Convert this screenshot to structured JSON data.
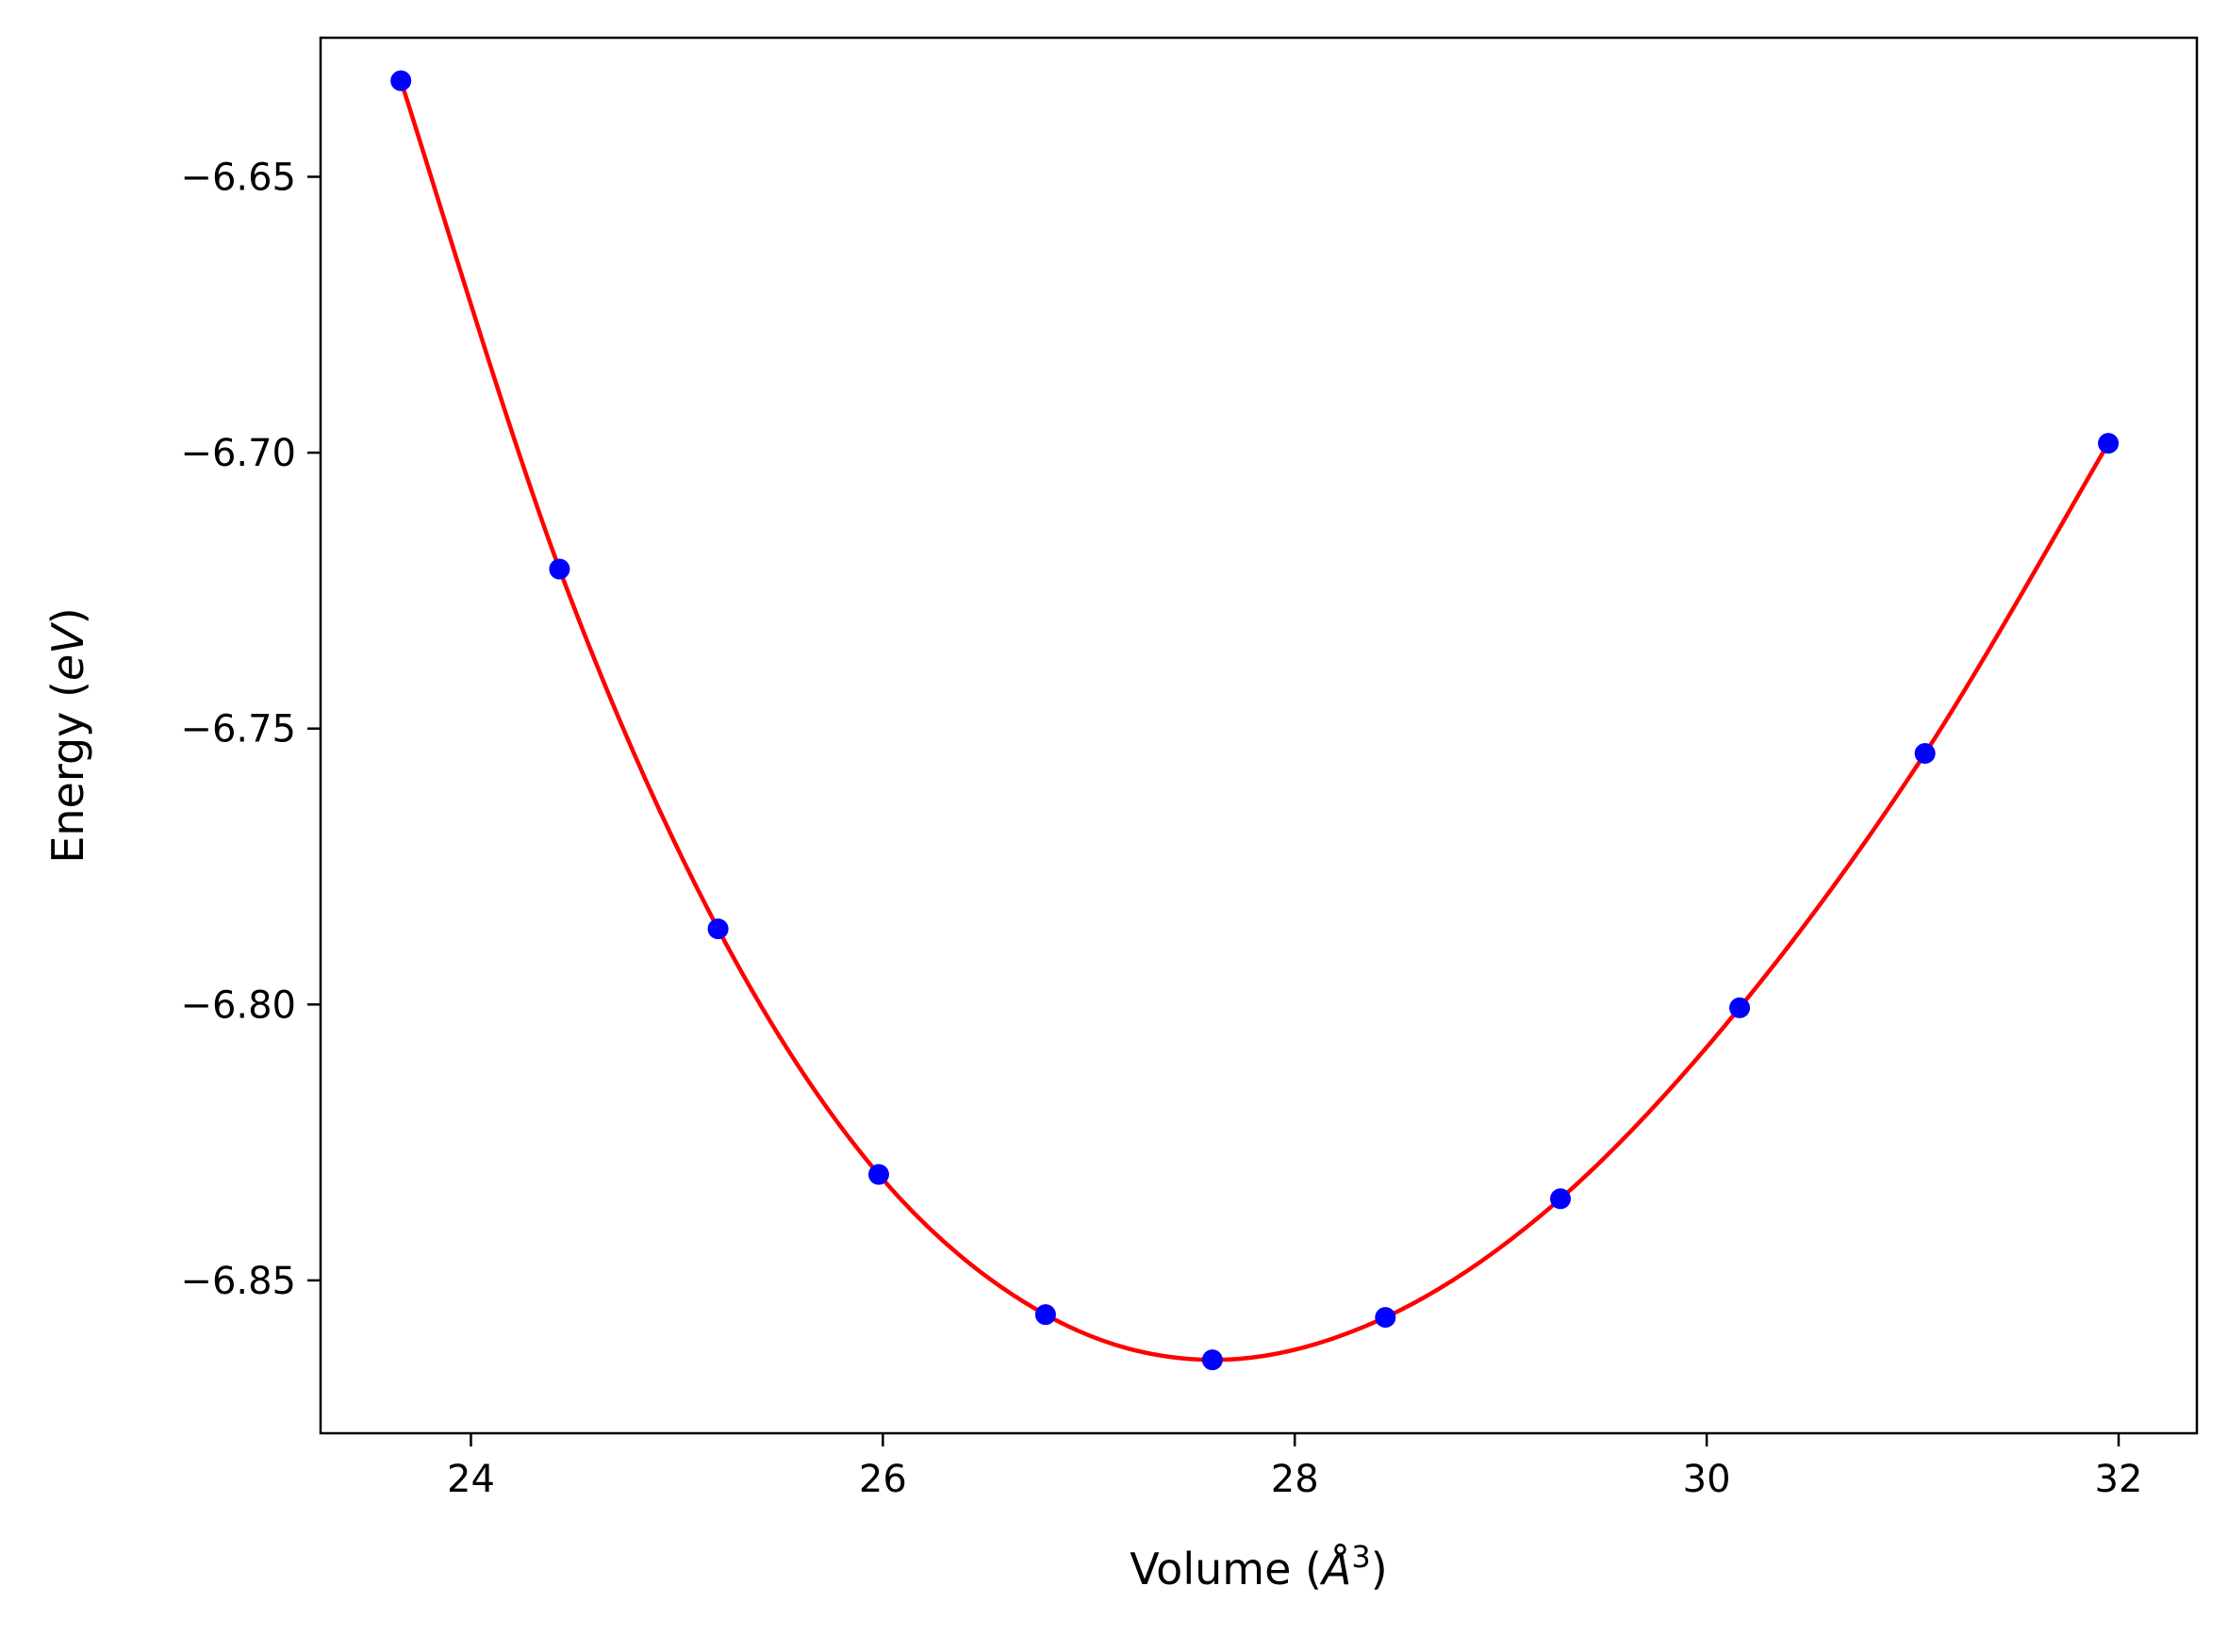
{
  "chart_data": {
    "type": "scatter",
    "title": "",
    "xlabel_prefix": "Volume (",
    "xlabel_unit": "Å",
    "xlabel_exp": "3",
    "xlabel_suffix": ")",
    "ylabel_prefix": "Energy (",
    "ylabel_unit": "eV",
    "ylabel_suffix": ")",
    "xlim": [
      23.27,
      32.38
    ],
    "ylim": [
      -6.8777,
      -6.6248
    ],
    "x_ticks": [
      24,
      26,
      28,
      30,
      32
    ],
    "x_tick_labels": [
      "24",
      "26",
      "28",
      "30",
      "32"
    ],
    "y_ticks": [
      -6.65,
      -6.7,
      -6.75,
      -6.8,
      -6.85
    ],
    "y_tick_labels": [
      "−6.65",
      "−6.70",
      "−6.75",
      "−6.80",
      "−6.85"
    ],
    "grid": false,
    "legend": "none",
    "series": [
      {
        "kind": "points",
        "color": "#0000ff",
        "x": [
          23.66,
          24.43,
          25.2,
          25.98,
          26.79,
          27.6,
          28.44,
          29.29,
          30.16,
          31.06,
          31.95
        ],
        "y": [
          -6.6326,
          -6.7211,
          -6.7863,
          -6.8308,
          -6.8562,
          -6.8644,
          -6.8567,
          -6.8352,
          -6.8006,
          -6.7545,
          -6.6983
        ]
      },
      {
        "kind": "fit-curve",
        "color": "#ff0000",
        "x": [
          23.66,
          24.43,
          25.2,
          25.98,
          26.79,
          27.6,
          28.44,
          29.29,
          30.16,
          31.06,
          31.95
        ],
        "y": [
          -6.6326,
          -6.7211,
          -6.7863,
          -6.8308,
          -6.8562,
          -6.8644,
          -6.8567,
          -6.8352,
          -6.8006,
          -6.7545,
          -6.6983
        ]
      }
    ]
  }
}
